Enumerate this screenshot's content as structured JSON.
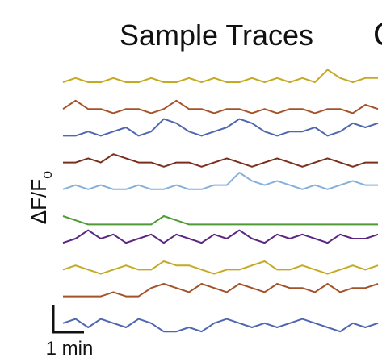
{
  "chart_data": {
    "type": "line",
    "title": "Sample Traces",
    "panel_letter": "C",
    "ylabel_main": "ΔF/F",
    "ylabel_sub": "o",
    "scale_bar_label": "1 min",
    "x": [
      0,
      4,
      8,
      12,
      16,
      20,
      24,
      28,
      32,
      36,
      40,
      44,
      48,
      52,
      56,
      60,
      64,
      68,
      72,
      76,
      80,
      84,
      88,
      92,
      96,
      100
    ],
    "series": [
      {
        "color": "#c4aa24",
        "values": [
          0.02,
          0.03,
          0.02,
          0.02,
          0.03,
          0.02,
          0.02,
          0.03,
          0.02,
          0.02,
          0.03,
          0.02,
          0.03,
          0.02,
          0.02,
          0.03,
          0.02,
          0.03,
          0.02,
          0.03,
          0.02,
          0.05,
          0.03,
          0.02,
          0.03,
          0.03
        ]
      },
      {
        "color": "#a5522a",
        "values": [
          0.03,
          0.05,
          0.03,
          0.03,
          0.02,
          0.03,
          0.03,
          0.02,
          0.03,
          0.05,
          0.03,
          0.03,
          0.02,
          0.03,
          0.03,
          0.02,
          0.03,
          0.02,
          0.03,
          0.03,
          0.02,
          0.03,
          0.03,
          0.02,
          0.04,
          0.03
        ]
      },
      {
        "color": "#4f66b0",
        "values": [
          0.02,
          0.02,
          0.03,
          0.02,
          0.03,
          0.04,
          0.02,
          0.03,
          0.06,
          0.05,
          0.03,
          0.02,
          0.03,
          0.04,
          0.06,
          0.05,
          0.03,
          0.02,
          0.03,
          0.03,
          0.04,
          0.02,
          0.03,
          0.05,
          0.04,
          0.05
        ]
      },
      {
        "color": "#7a2e1c",
        "values": [
          0.03,
          0.03,
          0.04,
          0.03,
          0.05,
          0.04,
          0.03,
          0.03,
          0.02,
          0.03,
          0.03,
          0.02,
          0.03,
          0.04,
          0.03,
          0.02,
          0.03,
          0.04,
          0.03,
          0.02,
          0.03,
          0.04,
          0.03,
          0.02,
          0.03,
          0.03
        ]
      },
      {
        "color": "#86b0dc",
        "values": [
          0.02,
          0.03,
          0.02,
          0.03,
          0.02,
          0.02,
          0.03,
          0.02,
          0.02,
          0.03,
          0.02,
          0.02,
          0.03,
          0.03,
          0.06,
          0.04,
          0.03,
          0.04,
          0.03,
          0.02,
          0.03,
          0.02,
          0.03,
          0.04,
          0.03,
          0.03
        ]
      },
      {
        "color": "#4f9a34",
        "values": [
          0.04,
          0.03,
          0.02,
          0.02,
          0.02,
          0.02,
          0.02,
          0.02,
          0.04,
          0.03,
          0.02,
          0.02,
          0.02,
          0.02,
          0.02,
          0.02,
          0.02,
          0.02,
          0.02,
          0.02,
          0.02,
          0.02,
          0.02,
          0.02,
          0.02,
          0.02
        ]
      },
      {
        "color": "#5a2682",
        "values": [
          0.02,
          0.03,
          0.05,
          0.03,
          0.04,
          0.02,
          0.03,
          0.04,
          0.02,
          0.04,
          0.03,
          0.02,
          0.04,
          0.03,
          0.05,
          0.03,
          0.02,
          0.04,
          0.03,
          0.04,
          0.03,
          0.02,
          0.04,
          0.03,
          0.03,
          0.04
        ]
      },
      {
        "color": "#c4aa24",
        "values": [
          0.03,
          0.04,
          0.03,
          0.02,
          0.03,
          0.04,
          0.03,
          0.03,
          0.05,
          0.04,
          0.04,
          0.03,
          0.02,
          0.03,
          0.03,
          0.04,
          0.05,
          0.03,
          0.03,
          0.04,
          0.03,
          0.02,
          0.03,
          0.04,
          0.03,
          0.04
        ]
      },
      {
        "color": "#a5522a",
        "values": [
          0.02,
          0.02,
          0.02,
          0.02,
          0.03,
          0.02,
          0.02,
          0.04,
          0.05,
          0.04,
          0.03,
          0.05,
          0.04,
          0.03,
          0.05,
          0.04,
          0.03,
          0.05,
          0.04,
          0.04,
          0.03,
          0.05,
          0.03,
          0.04,
          0.04,
          0.05
        ]
      },
      {
        "color": "#4f66b0",
        "values": [
          0.04,
          0.05,
          0.03,
          0.05,
          0.04,
          0.03,
          0.05,
          0.04,
          0.02,
          0.02,
          0.03,
          0.02,
          0.04,
          0.05,
          0.04,
          0.03,
          0.04,
          0.03,
          0.04,
          0.05,
          0.04,
          0.03,
          0.02,
          0.04,
          0.03,
          0.04
        ]
      }
    ]
  }
}
